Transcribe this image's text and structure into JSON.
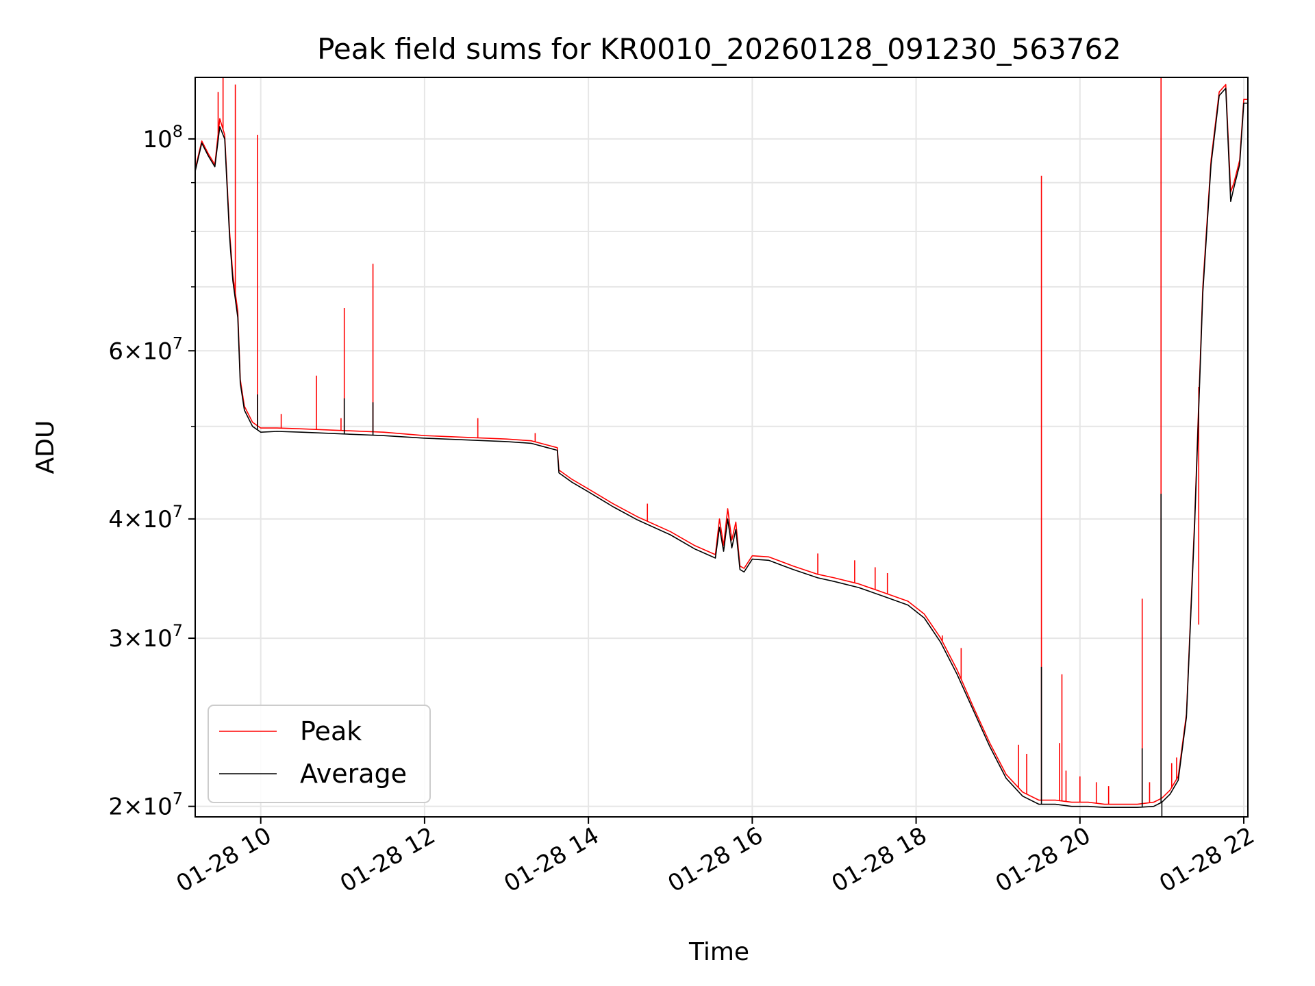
{
  "chart_data": {
    "type": "line",
    "title": "Peak field sums for KR0010_20260128_091230_563762",
    "xlabel": "Time",
    "ylabel": "ADU",
    "yscale": "log",
    "grid": true,
    "xlim": [
      9.2,
      22.05
    ],
    "ylim": [
      19500000,
      116000000
    ],
    "x_ticks": [
      {
        "value": 10,
        "label": "01-28 10"
      },
      {
        "value": 12,
        "label": "01-28 12"
      },
      {
        "value": 14,
        "label": "01-28 14"
      },
      {
        "value": 16,
        "label": "01-28 16"
      },
      {
        "value": 18,
        "label": "01-28 18"
      },
      {
        "value": 20,
        "label": "01-28 20"
      },
      {
        "value": 22,
        "label": "01-28 22"
      }
    ],
    "y_ticks": [
      {
        "value": 100000000,
        "base": "10",
        "exp": "8",
        "mant": ""
      },
      {
        "value": 60000000,
        "base": "10",
        "exp": "7",
        "mant": "6"
      },
      {
        "value": 40000000,
        "base": "10",
        "exp": "7",
        "mant": "4"
      },
      {
        "value": 30000000,
        "base": "10",
        "exp": "7",
        "mant": "3"
      },
      {
        "value": 20000000,
        "base": "10",
        "exp": "7",
        "mant": "2"
      }
    ],
    "y_minor_ticks": [
      50000000,
      70000000,
      80000000,
      90000000
    ],
    "legend": {
      "location": "lower-left",
      "entries": [
        "Peak",
        "Average"
      ]
    },
    "series": [
      {
        "name": "Peak",
        "color": "#ff0000",
        "x": [
          9.2,
          9.28,
          9.36,
          9.44,
          9.5,
          9.56,
          9.62,
          9.66,
          9.72,
          9.75,
          9.8,
          9.9,
          10.0,
          10.2,
          10.5,
          11.0,
          11.5,
          12.0,
          12.5,
          13.0,
          13.3,
          13.5,
          13.62,
          13.64,
          13.8,
          14.0,
          14.3,
          14.6,
          15.0,
          15.3,
          15.55,
          15.6,
          15.65,
          15.7,
          15.75,
          15.8,
          15.85,
          15.9,
          16.0,
          16.2,
          16.5,
          16.8,
          17.0,
          17.3,
          17.6,
          17.9,
          18.1,
          18.3,
          18.5,
          18.7,
          18.9,
          19.1,
          19.3,
          19.5,
          19.7,
          19.9,
          20.1,
          20.3,
          20.5,
          20.7,
          20.9,
          21.0,
          21.1,
          21.2,
          21.3,
          21.4,
          21.5,
          21.6,
          21.7,
          21.78,
          21.84,
          21.88,
          21.95,
          22.0,
          22.05
        ],
        "values": [
          93000000,
          99500000,
          96500000,
          94000000,
          105000000,
          101000000,
          80000000,
          72000000,
          66000000,
          56000000,
          52500000,
          50500000,
          49800000,
          49800000,
          49700000,
          49500000,
          49300000,
          48900000,
          48700000,
          48500000,
          48300000,
          47800000,
          47500000,
          45000000,
          44000000,
          43000000,
          41500000,
          40200000,
          38800000,
          37500000,
          36700000,
          40000000,
          37500000,
          41000000,
          38000000,
          39700000,
          35700000,
          35500000,
          36600000,
          36500000,
          35700000,
          35000000,
          34700000,
          34200000,
          33500000,
          32800000,
          31800000,
          30000000,
          27800000,
          25400000,
          23300000,
          21600000,
          20700000,
          20300000,
          20300000,
          20200000,
          20200000,
          20100000,
          20100000,
          20100000,
          20200000,
          20400000,
          20800000,
          21500000,
          25000000,
          40000000,
          70000000,
          95000000,
          112000000,
          114000000,
          88000000,
          90000000,
          95000000,
          110000000,
          110000000
        ],
        "spikes": [
          {
            "x": 9.54,
            "value": 116000000
          },
          {
            "x": 9.48,
            "value": 112000000
          },
          {
            "x": 9.69,
            "value": 114000000
          },
          {
            "x": 9.96,
            "value": 101000000
          },
          {
            "x": 10.25,
            "value": 51500000
          },
          {
            "x": 10.68,
            "value": 56500000
          },
          {
            "x": 10.98,
            "value": 51000000
          },
          {
            "x": 11.02,
            "value": 66500000
          },
          {
            "x": 11.37,
            "value": 74000000
          },
          {
            "x": 12.65,
            "value": 51000000
          },
          {
            "x": 13.35,
            "value": 49200000
          },
          {
            "x": 14.72,
            "value": 41500000
          },
          {
            "x": 16.8,
            "value": 36800000
          },
          {
            "x": 17.25,
            "value": 36200000
          },
          {
            "x": 17.5,
            "value": 35600000
          },
          {
            "x": 17.65,
            "value": 35100000
          },
          {
            "x": 18.32,
            "value": 30200000
          },
          {
            "x": 18.55,
            "value": 29300000
          },
          {
            "x": 19.25,
            "value": 23200000
          },
          {
            "x": 19.35,
            "value": 22700000
          },
          {
            "x": 19.53,
            "value": 91500000
          },
          {
            "x": 19.75,
            "value": 23300000
          },
          {
            "x": 19.78,
            "value": 27500000
          },
          {
            "x": 19.83,
            "value": 21800000
          },
          {
            "x": 20.0,
            "value": 21500000
          },
          {
            "x": 20.2,
            "value": 21200000
          },
          {
            "x": 20.35,
            "value": 21000000
          },
          {
            "x": 20.76,
            "value": 33000000
          },
          {
            "x": 20.85,
            "value": 21200000
          },
          {
            "x": 20.99,
            "value": 116000000
          },
          {
            "x": 21.12,
            "value": 22200000
          },
          {
            "x": 21.18,
            "value": 22500000
          },
          {
            "x": 21.45,
            "value": 31000000
          }
        ]
      },
      {
        "name": "Average",
        "color": "#000000",
        "x": [
          9.2,
          9.28,
          9.36,
          9.44,
          9.5,
          9.56,
          9.62,
          9.66,
          9.72,
          9.75,
          9.8,
          9.9,
          10.0,
          10.2,
          10.5,
          11.0,
          11.5,
          12.0,
          12.5,
          13.0,
          13.3,
          13.5,
          13.62,
          13.64,
          13.8,
          14.0,
          14.3,
          14.6,
          15.0,
          15.3,
          15.55,
          15.6,
          15.65,
          15.7,
          15.75,
          15.8,
          15.85,
          15.9,
          16.0,
          16.2,
          16.5,
          16.8,
          17.0,
          17.3,
          17.6,
          17.9,
          18.1,
          18.3,
          18.5,
          18.7,
          18.9,
          19.1,
          19.3,
          19.5,
          19.7,
          19.9,
          20.1,
          20.3,
          20.5,
          20.7,
          20.9,
          21.0,
          21.1,
          21.2,
          21.3,
          21.4,
          21.5,
          21.6,
          21.7,
          21.78,
          21.84,
          21.88,
          21.95,
          22.0,
          22.05
        ],
        "values": [
          92500000,
          99000000,
          96000000,
          93500000,
          103000000,
          100000000,
          79000000,
          71000000,
          65000000,
          55500000,
          52000000,
          50000000,
          49300000,
          49400000,
          49300000,
          49100000,
          48900000,
          48600000,
          48400000,
          48200000,
          48000000,
          47500000,
          47200000,
          44700000,
          43700000,
          42700000,
          41200000,
          39900000,
          38500000,
          37200000,
          36400000,
          39200000,
          37000000,
          40000000,
          37300000,
          39000000,
          35400000,
          35200000,
          36300000,
          36200000,
          35400000,
          34700000,
          34400000,
          33900000,
          33200000,
          32500000,
          31500000,
          29700000,
          27500000,
          25200000,
          23100000,
          21400000,
          20500000,
          20100000,
          20100000,
          20000000,
          20000000,
          19950000,
          19950000,
          19950000,
          20000000,
          20200000,
          20600000,
          21300000,
          24800000,
          39500000,
          69000000,
          94000000,
          111000000,
          113000000,
          86000000,
          89000000,
          94000000,
          109000000,
          109000000
        ],
        "spikes": [
          {
            "x": 9.96,
            "value": 54000000
          },
          {
            "x": 11.02,
            "value": 53500000
          },
          {
            "x": 11.37,
            "value": 53000000
          },
          {
            "x": 19.53,
            "value": 28000000
          },
          {
            "x": 20.76,
            "value": 23000000
          },
          {
            "x": 20.99,
            "value": 42500000
          },
          {
            "x": 21.0,
            "value": 19500000
          }
        ]
      }
    ]
  }
}
